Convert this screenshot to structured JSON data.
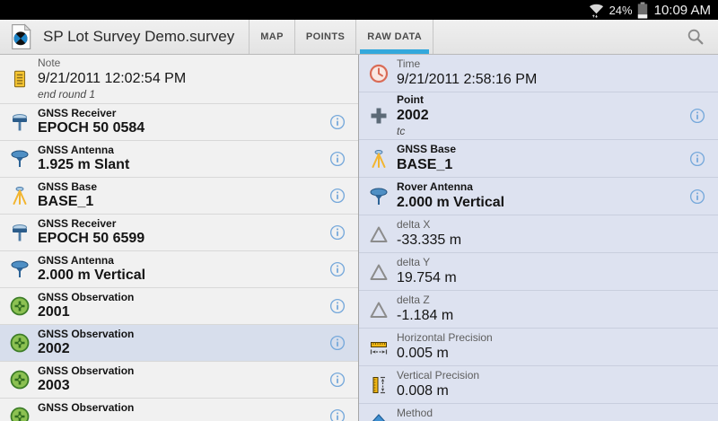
{
  "status_bar": {
    "battery_percent": "24%",
    "time": "10:09 AM"
  },
  "header": {
    "title": "SP Lot Survey Demo.survey",
    "accent_color": "#33a8dc",
    "tabs": [
      {
        "label": "MAP",
        "active": false
      },
      {
        "label": "POINTS",
        "active": false
      },
      {
        "label": "RAW DATA",
        "active": true
      }
    ]
  },
  "left_panel": {
    "rows": [
      {
        "icon": "note-icon",
        "label": "Note",
        "value": "9/21/2011 12:02:54 PM",
        "note": "end round 1",
        "bold": false,
        "has_info": false,
        "selected": false
      },
      {
        "icon": "gnss-receiver-icon",
        "label": "GNSS Receiver",
        "value": "EPOCH 50 0584",
        "bold": true,
        "has_info": true,
        "selected": false
      },
      {
        "icon": "gnss-antenna-icon",
        "label": "GNSS Antenna",
        "value": "1.925 m Slant",
        "bold": true,
        "has_info": true,
        "selected": false
      },
      {
        "icon": "gnss-base-icon",
        "label": "GNSS Base",
        "value": "BASE_1",
        "bold": true,
        "has_info": true,
        "selected": false
      },
      {
        "icon": "gnss-receiver-icon",
        "label": "GNSS Receiver",
        "value": "EPOCH 50 6599",
        "bold": true,
        "has_info": true,
        "selected": false
      },
      {
        "icon": "gnss-antenna-icon",
        "label": "GNSS Antenna",
        "value": "2.000 m Vertical",
        "bold": true,
        "has_info": true,
        "selected": false
      },
      {
        "icon": "gnss-observation-icon",
        "label": "GNSS Observation",
        "value": "2001",
        "bold": true,
        "has_info": true,
        "selected": false
      },
      {
        "icon": "gnss-observation-icon",
        "label": "GNSS Observation",
        "value": "2002",
        "bold": true,
        "has_info": true,
        "selected": true
      },
      {
        "icon": "gnss-observation-icon",
        "label": "GNSS Observation",
        "value": "2003",
        "bold": true,
        "has_info": true,
        "selected": false
      },
      {
        "icon": "gnss-observation-icon",
        "label": "GNSS Observation",
        "value": "",
        "bold": true,
        "has_info": true,
        "selected": false
      }
    ]
  },
  "right_panel": {
    "rows": [
      {
        "icon": "clock-icon",
        "label": "Time",
        "value": "9/21/2011 2:58:16 PM",
        "bold": false,
        "has_info": false
      },
      {
        "icon": "point-icon",
        "label": "Point",
        "value": "2002",
        "note": "tc",
        "bold": true,
        "has_info": true
      },
      {
        "icon": "gnss-base-icon",
        "label": "GNSS Base",
        "value": "BASE_1",
        "bold": true,
        "has_info": true
      },
      {
        "icon": "rover-antenna-icon",
        "label": "Rover Antenna",
        "value": "2.000 m Vertical",
        "bold": true,
        "has_info": true
      },
      {
        "icon": "delta-icon",
        "label": "delta X",
        "value": "-33.335 m",
        "bold": false,
        "has_info": false
      },
      {
        "icon": "delta-icon",
        "label": "delta Y",
        "value": "19.754 m",
        "bold": false,
        "has_info": false
      },
      {
        "icon": "delta-icon",
        "label": "delta Z",
        "value": "-1.184 m",
        "bold": false,
        "has_info": false
      },
      {
        "icon": "horizontal-precision-icon",
        "label": "Horizontal Precision",
        "value": "0.005 m",
        "bold": false,
        "has_info": false
      },
      {
        "icon": "vertical-precision-icon",
        "label": "Vertical Precision",
        "value": "0.008 m",
        "bold": false,
        "has_info": false
      },
      {
        "icon": "method-icon",
        "label": "Method",
        "value": "",
        "bold": false,
        "has_info": false
      }
    ]
  }
}
